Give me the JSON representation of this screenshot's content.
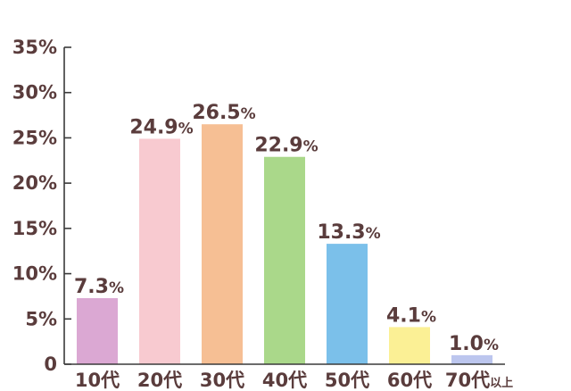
{
  "chart_data": {
    "type": "bar",
    "categories": [
      "10代",
      "20代",
      "30代",
      "40代",
      "50代",
      "60代",
      "70代"
    ],
    "category_suffixes": [
      "",
      "",
      "",
      "",
      "",
      "",
      "以上"
    ],
    "values": [
      7.3,
      24.9,
      26.5,
      22.9,
      13.3,
      4.1,
      1.0
    ],
    "value_labels": [
      "7.3",
      "24.9",
      "26.5",
      "22.9",
      "13.3",
      "4.1",
      "1.0"
    ],
    "value_unit": "%",
    "colors": [
      "#dba8d3",
      "#f8cad0",
      "#f6bf94",
      "#aad88a",
      "#7bc0ea",
      "#fbf095",
      "#bcc6ee"
    ],
    "ylim": [
      0,
      35
    ],
    "yticks": [
      0,
      5,
      10,
      15,
      20,
      25,
      30,
      35
    ],
    "ytick_labels": [
      "0",
      "5%",
      "10%",
      "15%",
      "20%",
      "25%",
      "30%",
      "35%"
    ],
    "grid": false,
    "title": "",
    "xlabel": "",
    "ylabel": ""
  }
}
